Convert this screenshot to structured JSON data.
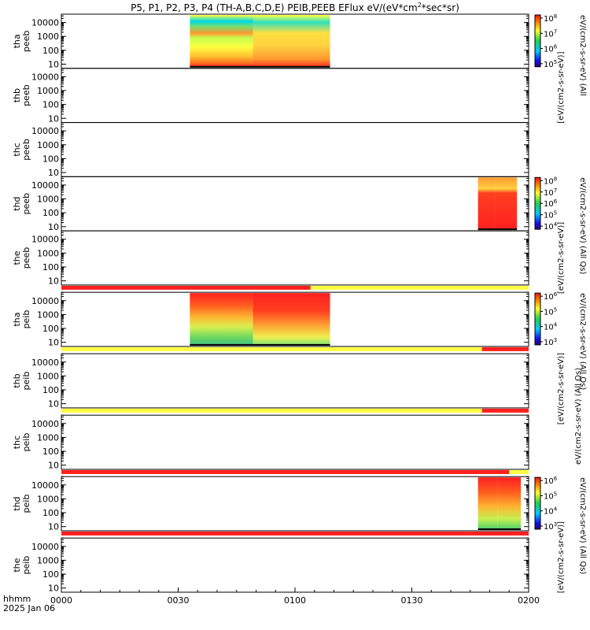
{
  "chart_data": {
    "type": "heatmap",
    "title": "P5, P1, P2, P3, P4 (TH-A,B,C,D,E) PEIB,PEEB EFlux eV/(eV*cm2*sec*sr)",
    "title_parts": {
      "pre": "P5, P1, P2, P3, P4 (TH-A,B,C,D,E) PEIB,PEEB EFlux eV/(eV*cm",
      "sup": "2",
      "post": "*sec*sr)"
    },
    "x_axis": {
      "range": [
        "0000",
        "0200"
      ],
      "tick_labels": [
        "0000",
        "0030",
        "0100",
        "0130",
        "0200"
      ],
      "label_line1": "hhmm",
      "label_line2": "2025 Jan 06"
    },
    "y_axis": {
      "scale": "log",
      "tick_labels": [
        "10000",
        "1000",
        "100",
        "10"
      ]
    },
    "panels": [
      {
        "probe": "tha",
        "product": "peeb",
        "ylabel": [
          "tha",
          "peeb"
        ],
        "data_range": [
          "0033",
          "0109"
        ],
        "colorbar": "electron",
        "dominant": "yellow-green"
      },
      {
        "probe": "thb",
        "product": "peeb",
        "ylabel": [
          "thb",
          "peeb"
        ],
        "data_range": null
      },
      {
        "probe": "thc",
        "product": "peeb",
        "ylabel": [
          "thc",
          "peeb"
        ],
        "data_range": null
      },
      {
        "probe": "thd",
        "product": "peeb",
        "ylabel": [
          "thd",
          "peeb"
        ],
        "data_range": [
          "0147",
          "0157"
        ],
        "colorbar": "electron-d",
        "dominant": "red"
      },
      {
        "probe": "the",
        "product": "peeb",
        "ylabel": [
          "the",
          "peeb"
        ],
        "data_range": null
      },
      {
        "probe": "tha",
        "product": "peib",
        "ylabel": [
          "tha",
          "peib"
        ],
        "data_range": [
          "0033",
          "0109"
        ],
        "colorbar": "ion",
        "dominant": "red-green"
      },
      {
        "probe": "thb",
        "product": "peib",
        "ylabel": [
          "thb",
          "peib"
        ],
        "data_range": null
      },
      {
        "probe": "thc",
        "product": "peib",
        "ylabel": [
          "thc",
          "peib"
        ],
        "data_range": null
      },
      {
        "probe": "thd",
        "product": "peib",
        "ylabel": [
          "thd",
          "peib"
        ],
        "data_range": [
          "0147",
          "0158"
        ],
        "colorbar": "ion-d",
        "dominant": "red-green"
      },
      {
        "probe": "the",
        "product": "peib",
        "ylabel": [
          "the",
          "peib"
        ],
        "data_range": null
      }
    ],
    "mode_bars": [
      {
        "after_panel": 5,
        "segments": [
          {
            "from": "0000",
            "to": "0104",
            "color": "red"
          },
          {
            "from": "0104",
            "to": "0200",
            "color": "yellow"
          }
        ]
      },
      {
        "after_panel": 6,
        "segments": [
          {
            "from": "0000",
            "to": "0148",
            "color": "yellow"
          },
          {
            "from": "0148",
            "to": "0200",
            "color": "red"
          }
        ]
      },
      {
        "after_panel": 7,
        "segments": [
          {
            "from": "0000",
            "to": "0148",
            "color": "yellow"
          },
          {
            "from": "0148",
            "to": "0200",
            "color": "red"
          }
        ]
      },
      {
        "after_panel": 8,
        "segments": [
          {
            "from": "0000",
            "to": "0155",
            "color": "red"
          },
          {
            "from": "0155",
            "to": "0200",
            "color": "yellow"
          }
        ]
      },
      {
        "after_panel": 9,
        "segments": [
          {
            "from": "0000",
            "to": "0200",
            "color": "red"
          }
        ]
      }
    ],
    "colorbars": {
      "electron": {
        "label": "eV/(cm2-s-sr-eV) (All",
        "ticks": [
          {
            "base": "10",
            "exp": "8"
          },
          {
            "base": "10",
            "exp": "7"
          },
          {
            "base": "10",
            "exp": "6"
          },
          {
            "base": "10",
            "exp": "5"
          }
        ]
      },
      "units_box": {
        "label": "[eV/(cm2-s-sr-eV)]"
      },
      "electron-d": {
        "label": "eV/(cm2-s-sr-eV) (All Qs)",
        "ticks": [
          {
            "base": "10",
            "exp": "8"
          },
          {
            "base": "10",
            "exp": "7"
          },
          {
            "base": "10",
            "exp": "6"
          },
          {
            "base": "10",
            "exp": "5"
          },
          {
            "base": "10",
            "exp": "4"
          }
        ]
      },
      "overlap": {
        "label": "[eV/(cm2-s-sr-eV)]"
      },
      "ion": {
        "label": "eV/(cm2-s-sr-eV) (All Qs)",
        "ticks": [
          {
            "base": "10",
            "exp": "6"
          },
          {
            "base": "10",
            "exp": "5"
          },
          {
            "base": "10",
            "exp": "4"
          },
          {
            "base": "10",
            "exp": "3"
          }
        ]
      },
      "ion_units": {
        "label": "[eV/(cm2-s-sr-eV)]"
      },
      "ion-d-top": {
        "label": "eV/(cm2-s-sr-eV) (All Qs)"
      },
      "ion-d": {
        "label": "eV/(cm2-s-sr-eV) (All Qs)",
        "ticks": [
          {
            "base": "10",
            "exp": "6"
          },
          {
            "base": "10",
            "exp": "5"
          },
          {
            "base": "10",
            "exp": "4"
          },
          {
            "base": "10",
            "exp": "3"
          }
        ]
      },
      "ion_d_units": {
        "label": "[eV/(cm2-s-sr-eV)]"
      }
    },
    "colors": {
      "red": "#ff2020",
      "yellow": "#ffff40",
      "orange": "#ff8a1e",
      "green": "#5ad25a",
      "cyan": "#00d8e8",
      "black": "#000000"
    }
  }
}
